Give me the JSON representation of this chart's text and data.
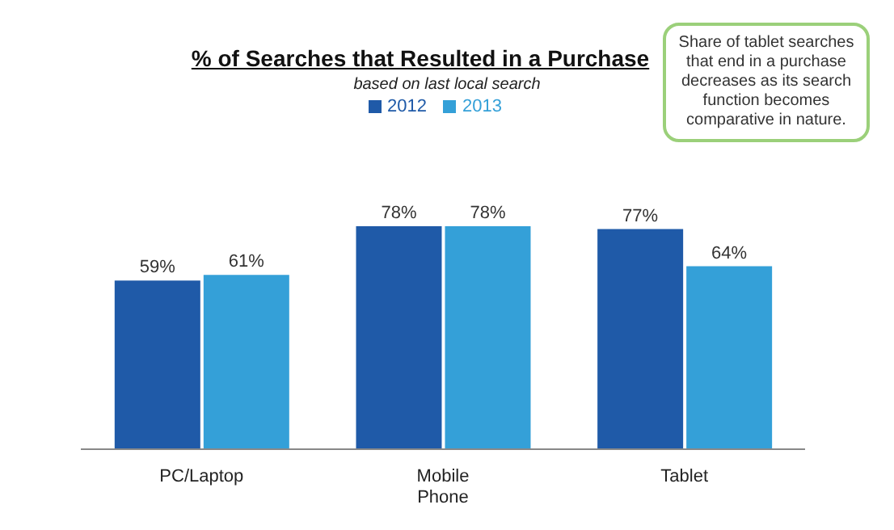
{
  "chart_data": {
    "type": "bar",
    "title": "% of Searches that Resulted in a Purchase",
    "subtitle": "based on last local search",
    "categories": [
      "PC/Laptop",
      "Mobile Phone",
      "Tablet"
    ],
    "series": [
      {
        "name": "2012",
        "color": "#1f5aa8",
        "values": [
          59,
          78,
          77
        ],
        "value_labels": [
          "59%",
          "78%",
          "77%"
        ]
      },
      {
        "name": "2013",
        "color": "#34a0d8",
        "values": [
          61,
          78,
          64
        ],
        "value_labels": [
          "61%",
          "78%",
          "64%"
        ]
      }
    ],
    "legend": "top",
    "annotations": [
      "Share of tablet searches that end in a purchase decreases as its search function becomes comparative in nature."
    ]
  }
}
